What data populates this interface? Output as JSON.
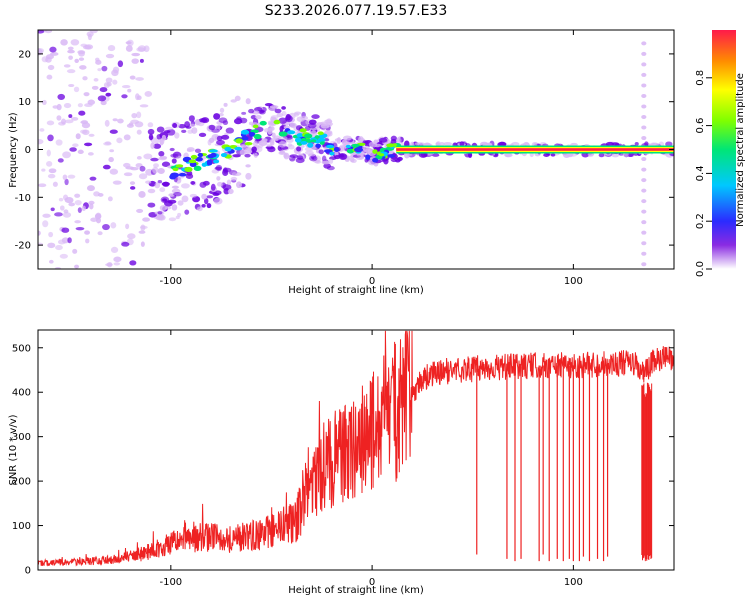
{
  "title": "S233.2026.077.19.57.E33",
  "colors": {
    "axes": "#000000",
    "snr_line": "#ee2222",
    "speckle_light": "#d9b8f5",
    "speckle_dark": "#6a00e0"
  },
  "chart_data": [
    {
      "type": "heatmap",
      "title": "S233.2026.077.19.57.E33",
      "xlabel": "Height of straight line (km)",
      "ylabel": "Frequency (Hz)",
      "xlim": [
        -166,
        150
      ],
      "ylim": [
        -25,
        25
      ],
      "xticks": [
        -100,
        0,
        100
      ],
      "yticks": [
        -20,
        -10,
        0,
        10,
        20
      ],
      "xtick_labels": [
        "-100",
        "0",
        "100"
      ],
      "ytick_labels": [
        "-20",
        "-10",
        "0",
        "10",
        "20"
      ],
      "colorbar": {
        "label": "Normalized spectral amplitude",
        "range": [
          0,
          1
        ],
        "ticks": [
          0.0,
          0.2,
          0.4,
          0.6,
          0.8
        ],
        "tick_labels": [
          "0.0",
          "0.2",
          "0.4",
          "0.6",
          "0.8"
        ],
        "colormap": "rainbow (violet to red)"
      },
      "ridge": [
        {
          "x": -115,
          "y": -7
        },
        {
          "x": -95,
          "y": -4
        },
        {
          "x": -75,
          "y": -1
        },
        {
          "x": -60,
          "y": 3
        },
        {
          "x": -50,
          "y": 5
        },
        {
          "x": -40,
          "y": 3
        },
        {
          "x": -25,
          "y": 2
        },
        {
          "x": -18,
          "y": 0
        },
        {
          "x": -5,
          "y": 0
        },
        {
          "x": 0,
          "y": -1
        },
        {
          "x": 8,
          "y": 0
        },
        {
          "x": 15,
          "y": 0
        },
        {
          "x": 150,
          "y": 0
        }
      ],
      "dominant_line": {
        "x_start": 12,
        "x_end": 150,
        "frequency": 0,
        "amplitude": 1.0
      },
      "vertical_artifact_x": 135
    },
    {
      "type": "line",
      "xlabel": "Height of straight line (km)",
      "ylabel": "SNR (10 * v/v)",
      "xlim": [
        -166,
        150
      ],
      "ylim": [
        0,
        540
      ],
      "xticks": [
        -100,
        0,
        100
      ],
      "yticks": [
        0,
        100,
        200,
        300,
        400,
        500
      ],
      "xtick_labels": [
        "-100",
        "0",
        "100"
      ],
      "ytick_labels": [
        "0",
        "100",
        "200",
        "300",
        "400",
        "500"
      ],
      "series": [
        {
          "x": [
            -166,
            -150,
            -130,
            -115,
            -100,
            -85,
            -70,
            -55,
            -45,
            -38,
            -32,
            -25,
            -18,
            -10,
            -5,
            0,
            5,
            10,
            15,
            20,
            25,
            30,
            40,
            60,
            80,
            100,
            120,
            130,
            135,
            140,
            150
          ],
          "y": [
            15,
            18,
            22,
            35,
            60,
            75,
            70,
            80,
            95,
            110,
            180,
            230,
            250,
            270,
            290,
            310,
            330,
            350,
            370,
            400,
            430,
            440,
            450,
            455,
            460,
            460,
            465,
            465,
            440,
            470,
            480
          ]
        }
      ],
      "dropouts": [
        {
          "x": 52,
          "min": 35
        },
        {
          "x": 67,
          "min": 25
        },
        {
          "x": 71,
          "min": 20
        },
        {
          "x": 74,
          "min": 25
        },
        {
          "x": 83,
          "min": 20
        },
        {
          "x": 85,
          "min": 35
        },
        {
          "x": 88,
          "min": 20
        },
        {
          "x": 92,
          "min": 25
        },
        {
          "x": 95,
          "min": 20
        },
        {
          "x": 98,
          "min": 25
        },
        {
          "x": 100,
          "min": 20
        },
        {
          "x": 103,
          "min": 20
        },
        {
          "x": 105,
          "min": 30
        },
        {
          "x": 108,
          "min": 20
        },
        {
          "x": 112,
          "min": 25
        },
        {
          "x": 115,
          "min": 20
        },
        {
          "x": 117,
          "min": 30
        }
      ],
      "collapse_band": {
        "x_start": 134,
        "x_end": 139,
        "min": 20,
        "max": 430
      }
    }
  ]
}
